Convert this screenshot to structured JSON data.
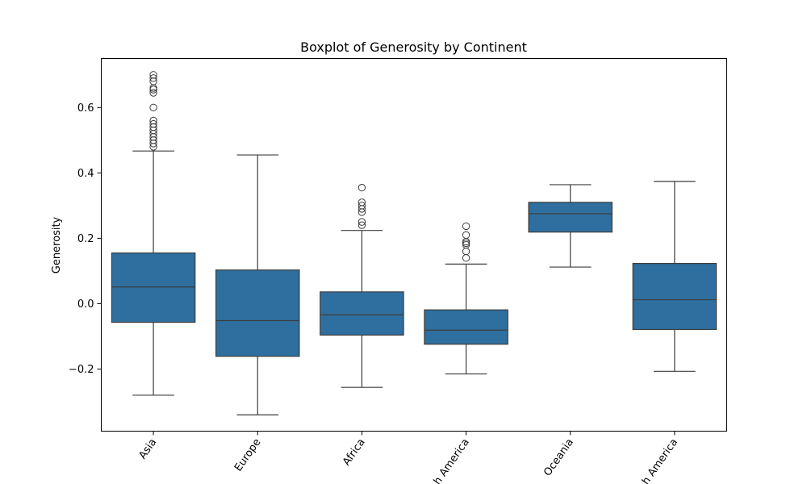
{
  "chart_data": {
    "type": "box",
    "title": "Boxplot of Generosity by Continent",
    "xlabel": "",
    "ylabel": "Generosity",
    "ylim": [
      -0.39,
      0.75
    ],
    "yticks": [
      -0.2,
      0.0,
      0.2,
      0.4,
      0.6
    ],
    "ytick_labels": [
      "−0.2",
      "0.0",
      "0.2",
      "0.4",
      "0.6"
    ],
    "grid": false,
    "legend": "none",
    "box_color": "#2f6f9f",
    "line_color": "#3d3d3d",
    "categories": [
      "Asia",
      "Europe",
      "Africa",
      "h America",
      "Oceania",
      "h America"
    ],
    "category_labels_note_visible_text": [
      "Asia",
      "Europe",
      "Africa",
      "h America",
      "Oceania",
      "h America"
    ],
    "boxes": [
      {
        "category": "Asia",
        "whisker_low": -0.28,
        "q1": -0.057,
        "median": 0.051,
        "q3": 0.155,
        "whisker_high": 0.467,
        "outliers": [
          0.48,
          0.49,
          0.5,
          0.51,
          0.52,
          0.53,
          0.54,
          0.55,
          0.56,
          0.6,
          0.645,
          0.655,
          0.66,
          0.68,
          0.69,
          0.7
        ]
      },
      {
        "category": "Europe",
        "whisker_low": -0.34,
        "q1": -0.161,
        "median": -0.052,
        "q3": 0.103,
        "whisker_high": 0.455,
        "outliers": []
      },
      {
        "category": "Africa",
        "whisker_low": -0.256,
        "q1": -0.096,
        "median": -0.034,
        "q3": 0.036,
        "whisker_high": 0.224,
        "outliers": [
          0.24,
          0.25,
          0.28,
          0.29,
          0.3,
          0.31,
          0.355
        ]
      },
      {
        "category": "h America",
        "whisker_low": -0.215,
        "q1": -0.124,
        "median": -0.081,
        "q3": -0.019,
        "whisker_high": 0.121,
        "outliers": [
          0.14,
          0.16,
          0.18,
          0.185,
          0.19,
          0.21,
          0.237
        ]
      },
      {
        "category": "Oceania",
        "whisker_low": 0.112,
        "q1": 0.219,
        "median": 0.275,
        "q3": 0.31,
        "whisker_high": 0.364,
        "outliers": []
      },
      {
        "category": "h America",
        "whisker_low": -0.207,
        "q1": -0.079,
        "median": 0.012,
        "q3": 0.123,
        "whisker_high": 0.374,
        "outliers": []
      }
    ]
  }
}
